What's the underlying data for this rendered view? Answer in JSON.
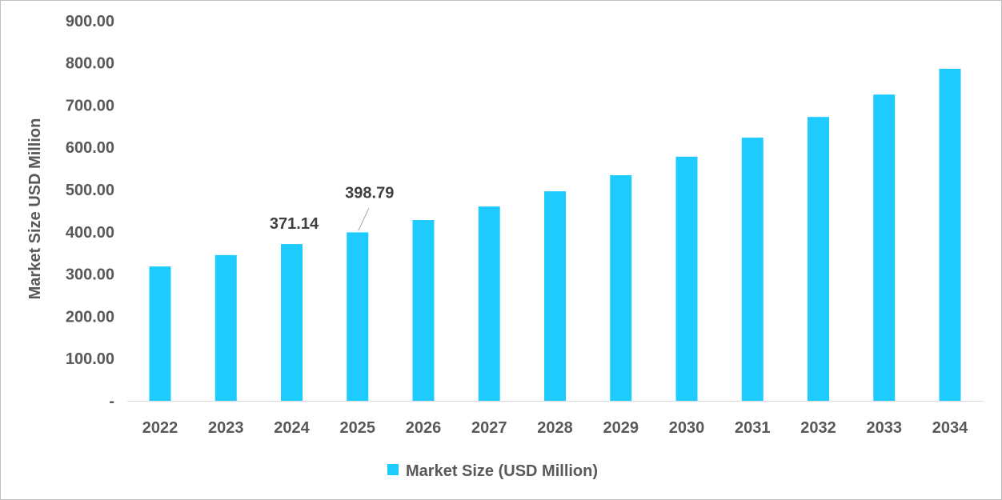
{
  "chart_data": {
    "type": "bar",
    "title": "",
    "xlabel": "",
    "ylabel": "Market Size USD Million",
    "categories": [
      "2022",
      "2023",
      "2024",
      "2025",
      "2026",
      "2027",
      "2028",
      "2029",
      "2030",
      "2031",
      "2032",
      "2033",
      "2034"
    ],
    "series": [
      {
        "name": "Market Size (USD Million)",
        "color": "#1ECBFF",
        "values": [
          318,
          345,
          371.14,
          398.79,
          428,
          460,
          496,
          534,
          578,
          623,
          672,
          725,
          786
        ]
      }
    ],
    "ylim": [
      0,
      900
    ],
    "yticks": [
      "-",
      "100.00",
      "200.00",
      "300.00",
      "400.00",
      "500.00",
      "600.00",
      "700.00",
      "800.00",
      "900.00"
    ],
    "data_labels": [
      {
        "index": 2,
        "text": "371.14"
      },
      {
        "index": 3,
        "text": "398.79"
      }
    ],
    "grid": false,
    "legend": "bottom-center"
  }
}
